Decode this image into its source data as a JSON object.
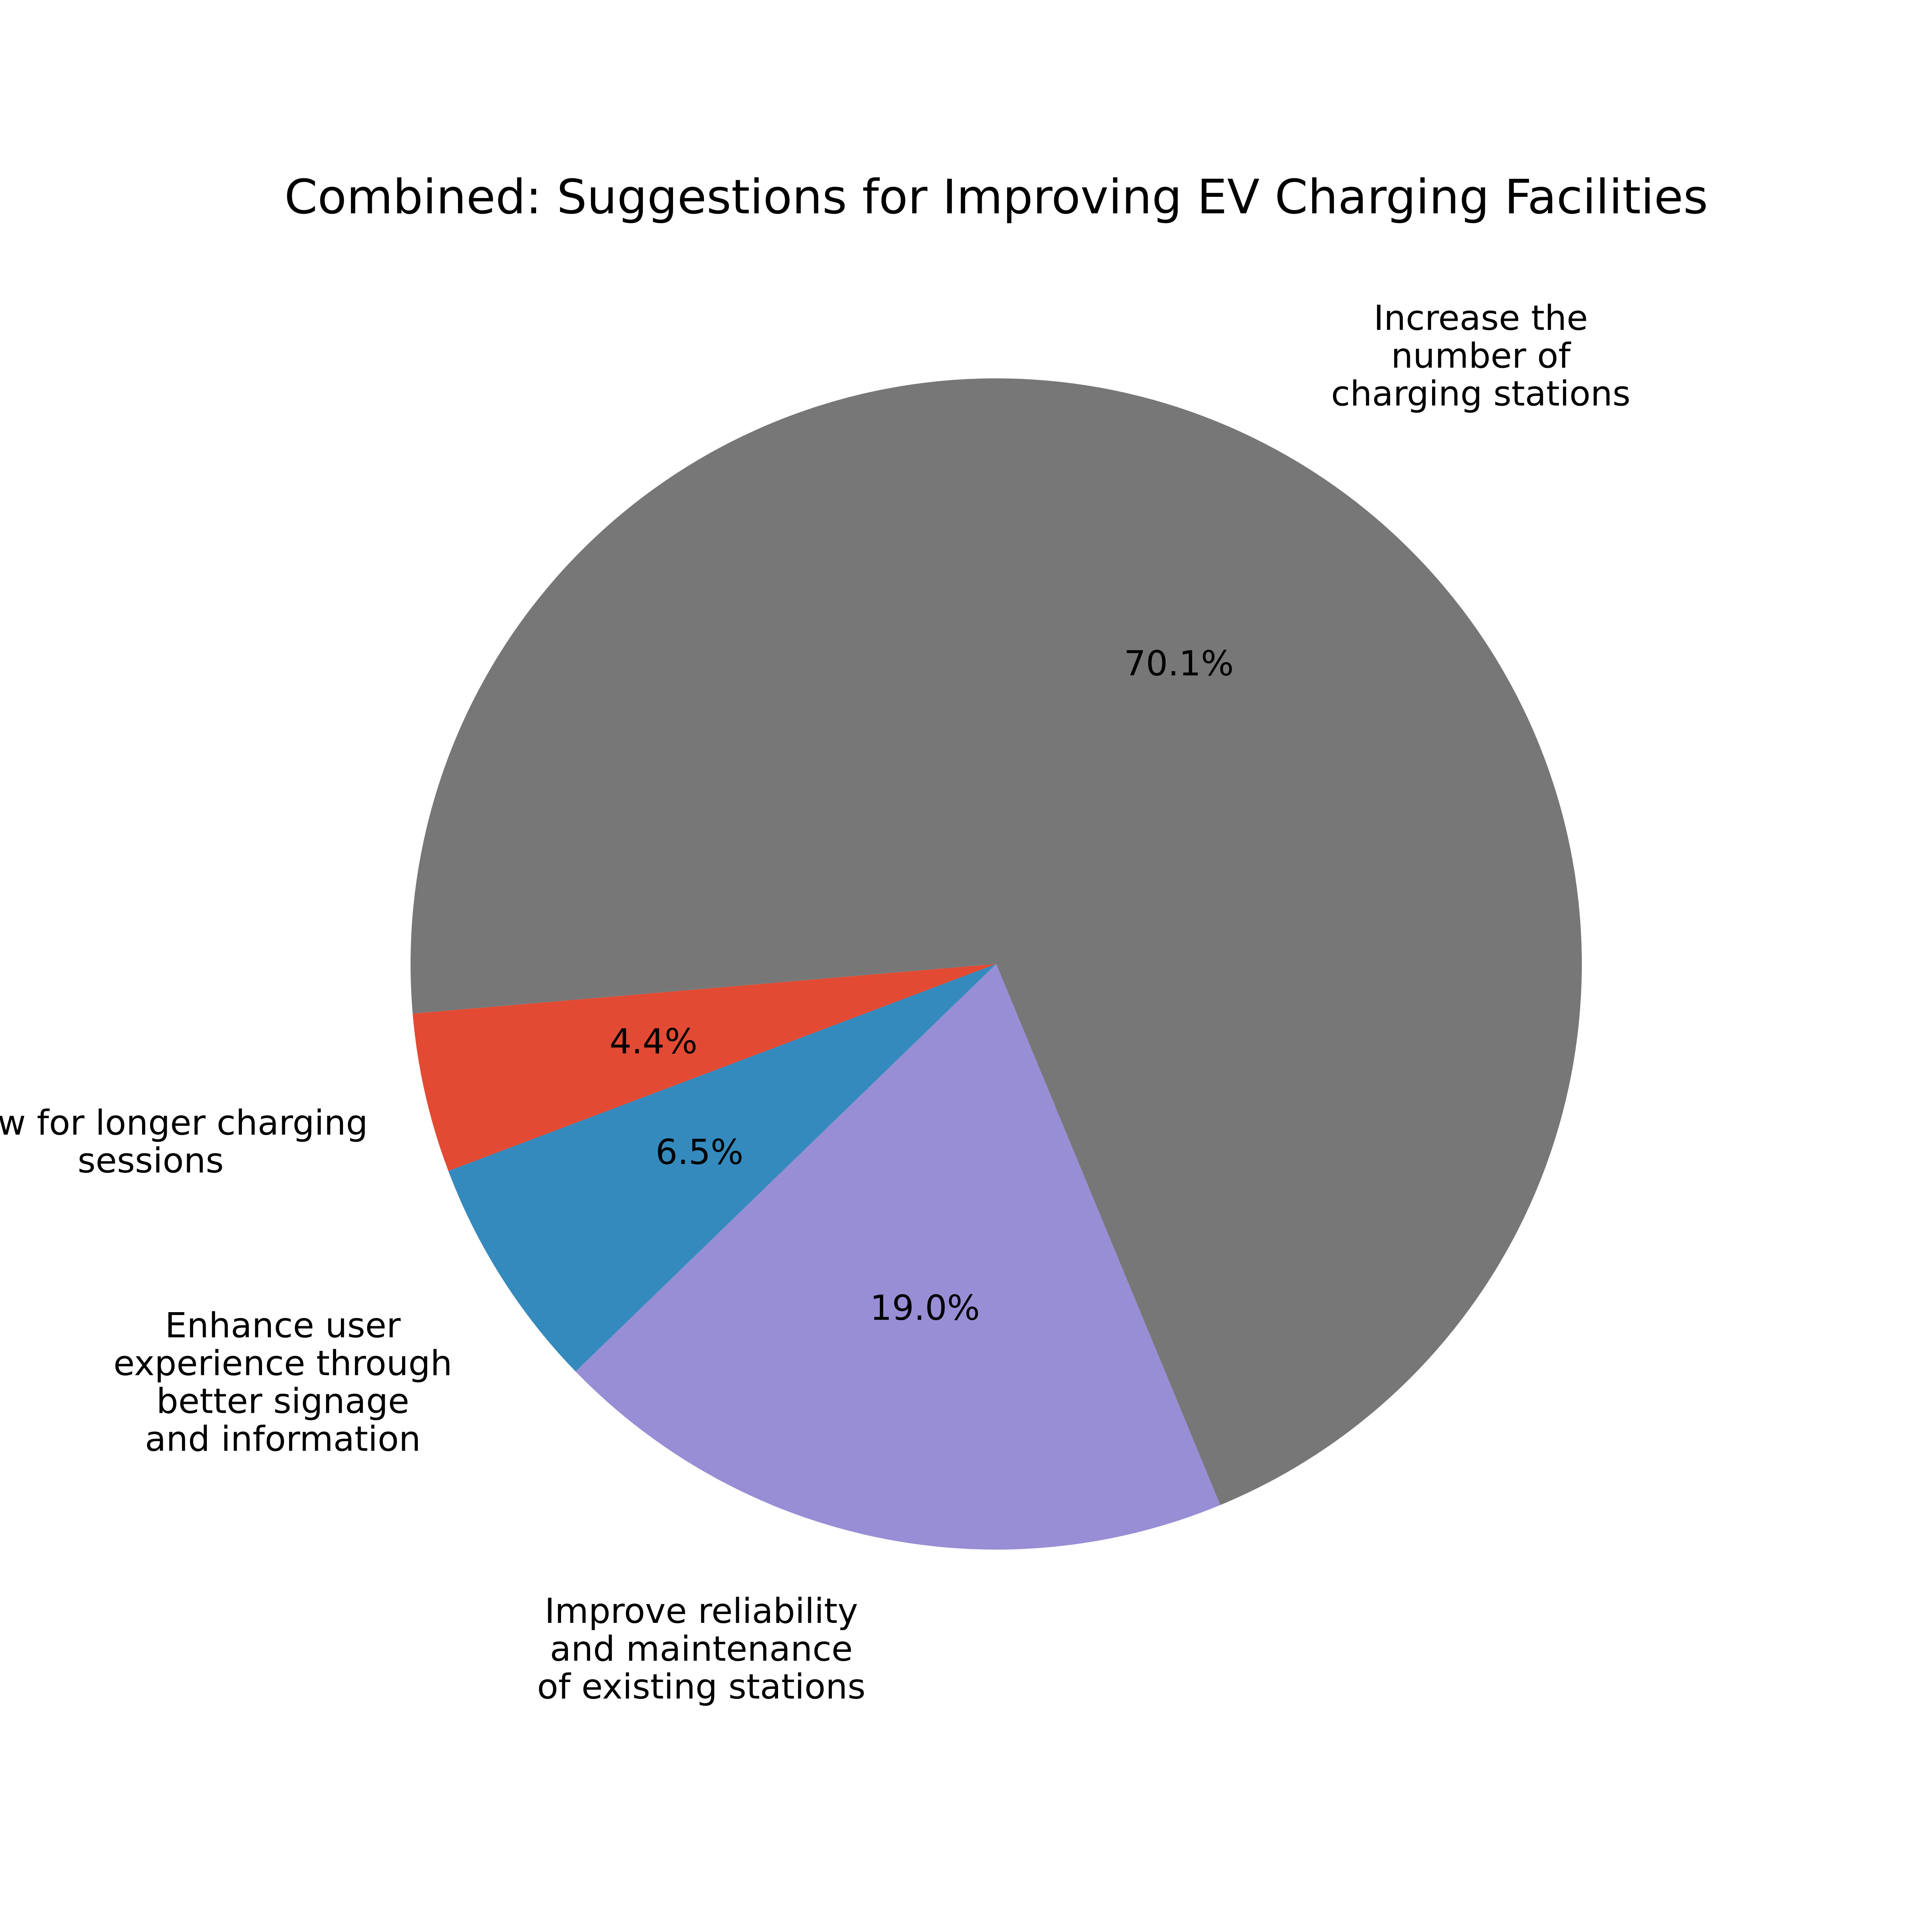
{
  "chart_data": {
    "type": "pie",
    "title": "Combined: Suggestions for Improving EV Charging Facilities",
    "slices": [
      {
        "label": "Increase the\nnumber of\ncharging stations",
        "value": 70.1,
        "pct_label": "70.1%",
        "color": "#777777"
      },
      {
        "label": "Allow for longer charging\nsessions",
        "value": 4.4,
        "pct_label": "4.4%",
        "color": "#E24A33"
      },
      {
        "label": "Enhance user\nexperience through\nbetter signage\nand information",
        "value": 6.5,
        "pct_label": "6.5%",
        "color": "#348ABD"
      },
      {
        "label": "Improve reliability\nand maintenance\nof existing stations",
        "value": 19.0,
        "pct_label": "19.0%",
        "color": "#988ED5"
      }
    ],
    "start_angle_deg": -67.5,
    "direction": "counterclockwise",
    "legend": "none"
  }
}
